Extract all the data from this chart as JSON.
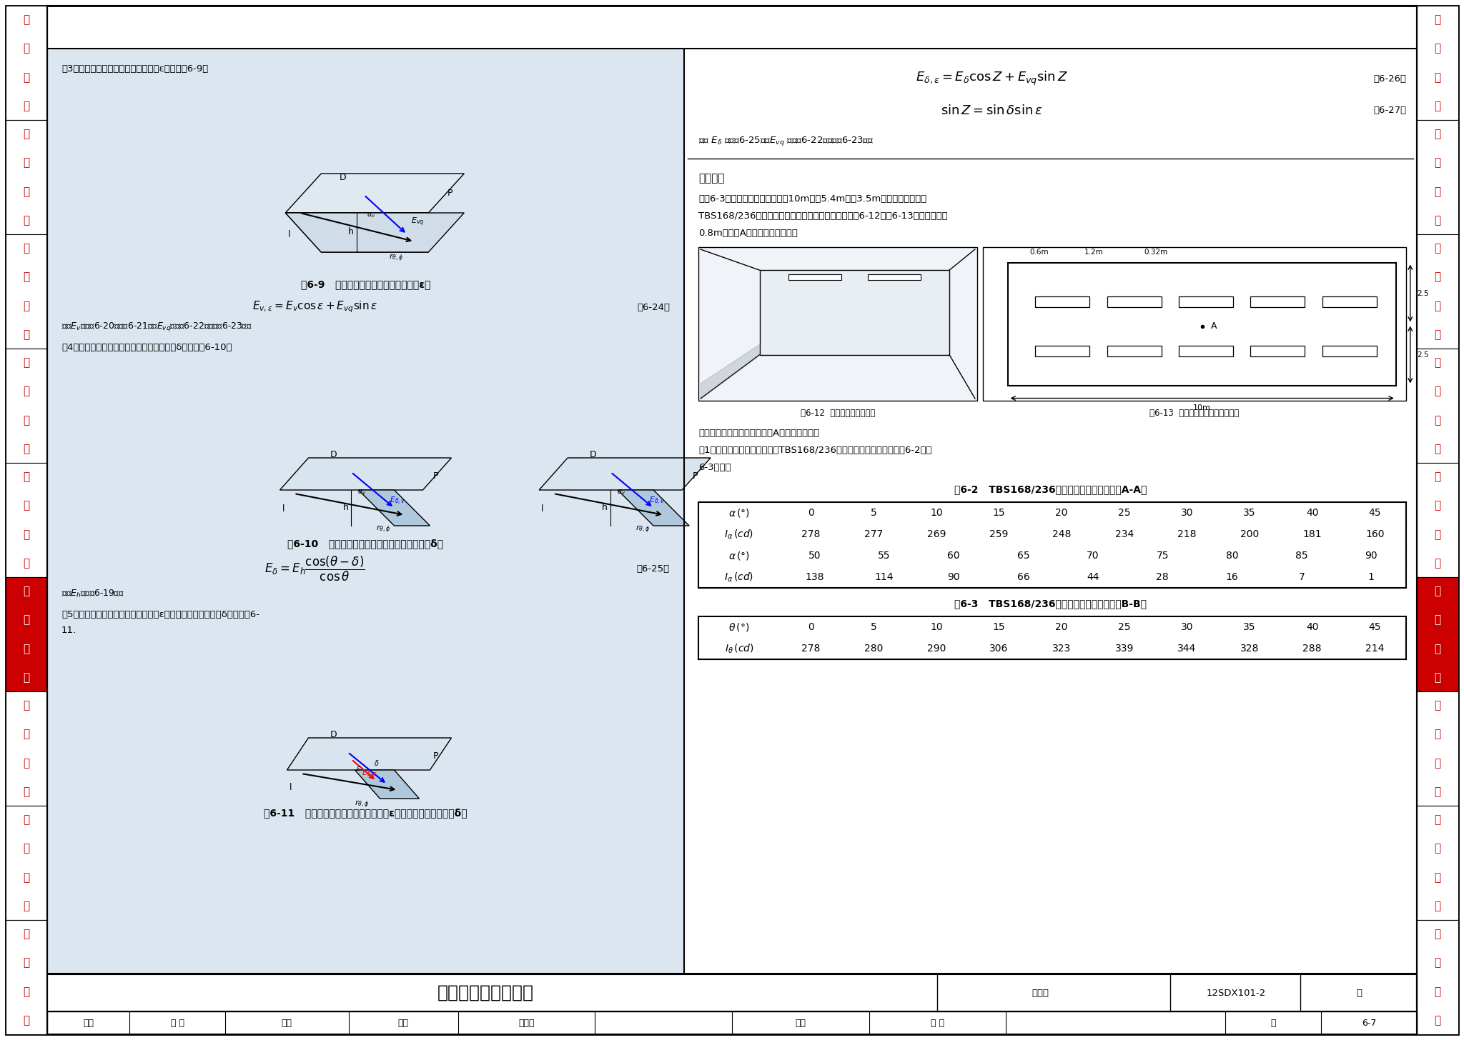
{
  "page_bg": "#ffffff",
  "left_panel_bg": "#dce6f1",
  "sidebar_red_bg": "#cc0000",
  "sidebar_text_color": "#cc0000",
  "sidebar_red_text": "#ffffff",
  "sidebar_items": [
    "负荷计算",
    "短路计算",
    "继电保护",
    "线缆截面",
    "常用设备",
    "照明计算",
    "防雷接地",
    "弱电计算",
    "工程示例"
  ],
  "sidebar_highlight": "照明计算",
  "title_bottom": "逐点计算法照度计算",
  "figure_num_label": "图集号",
  "figure_id": "12SDX101-2",
  "page_num": "6-7",
  "table2_title": "表6-2   TBS168/236型荧光灯具发光强度值（A-A）",
  "table3_title": "表6-3   TBS168/236型荧光灯具发光强度值（B-B）",
  "table2_row1": [
    0,
    5,
    10,
    15,
    20,
    25,
    30,
    35,
    40,
    45
  ],
  "table2_row2": [
    278,
    277,
    269,
    259,
    248,
    234,
    218,
    200,
    181,
    160
  ],
  "table2_row3": [
    50,
    55,
    60,
    65,
    70,
    75,
    80,
    85,
    90
  ],
  "table2_row4": [
    138,
    114,
    90,
    66,
    44,
    28,
    16,
    7,
    1
  ],
  "table3_row1": [
    0,
    5,
    10,
    15,
    20,
    25,
    30,
    35,
    40,
    45
  ],
  "table3_row2": [
    278,
    280,
    290,
    306,
    323,
    339,
    344,
    328,
    288,
    214
  ],
  "left_text1": "（3）被照面垂直，相对光源方向旋转ε角，见图6-9。",
  "fig9_label": "图6-9   被照面垂直，相对光源方向旋转ε角",
  "fig9_formula_num": "（6-24）",
  "fig9_note_1": "式中E",
  "fig9_note_2": "见式（6-20）、（6-21），E",
  "fig9_note_3": "见式（6-22）、式（6-23）。",
  "left_text2": "（4）被照面平行于光源，相对水平方向倾斜δ角，见图6-10。",
  "fig10_label": "图6-10   被照面平行于光源，相对水平方向倾斜δ角",
  "fig10_formula_num": "（6-25）",
  "fig10_note": "式中E",
  "fig10_note2": "见式（6-19）。",
  "left_text3_1": "（5）被照面任意位置，相对光源旋转ε角，相对水平方向倾斜δ角，见图6-",
  "left_text3_2": "11.",
  "fig11_label": "图6-11   被照面任意位置，相对光源旋转ε角，相对水平方向倾斜δ角",
  "example_bold": "【示例】",
  "example_line1": "【例6-3】某医院药房尺寸为：长10m、宽5.4m、高3.5m，且有吊顶，采用",
  "example_line2": "TBS168/236型嵌装式荧光灯具，布置成两光带，如图6-12及图6-13所示，试计算",
  "example_line3": "0.8m高处的A点直射水平面照度。",
  "calc_text1": "计算过程：按方位系数法计算A点水平面照度。",
  "calc_text2": "（1）确定灯具光强分布类型。TBS168/236型荧光灯具发光强度值如表6-2和表",
  "calc_text3": "6-3所示。",
  "fig12_label": "图6-12  某医院药房内部透视",
  "fig13_label": "图6-13  某医院药房内灯具平面布置",
  "footer_items": [
    "审核",
    "万 力",
    "巨力",
    "校对",
    "朱永前",
    "设计",
    "周 韬",
    "页",
    "6-7"
  ],
  "footer_sig_items": [
    "巨力",
    "朱永前"
  ]
}
